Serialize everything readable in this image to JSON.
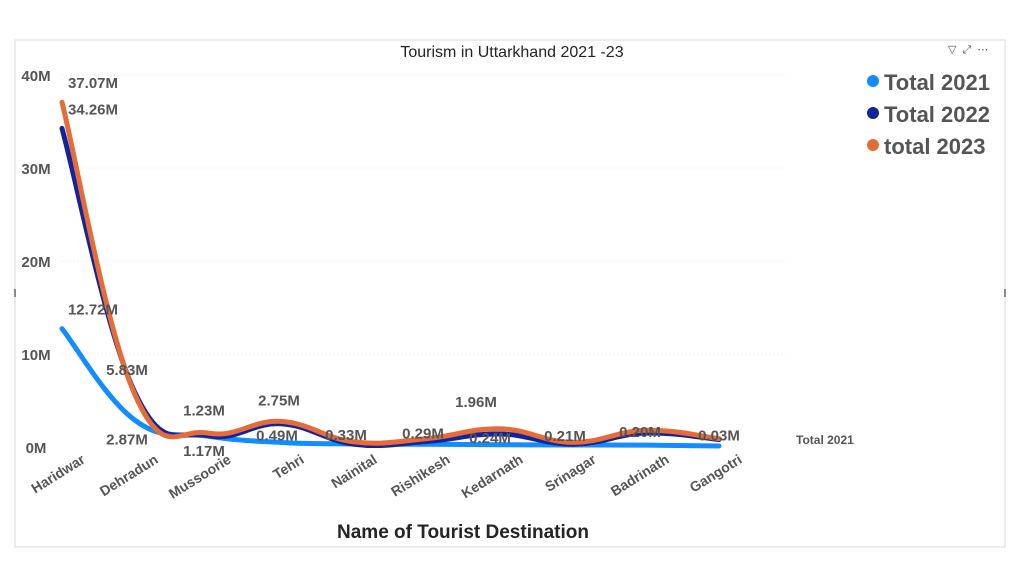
{
  "visual_header": {
    "filter_icon": "▽",
    "focus_icon": "⤢",
    "more_icon": "⋯"
  },
  "chart_data": {
    "type": "line",
    "title": "Tourism in Uttarkhand 2021 -23",
    "xlabel": "Name of Tourist Destination",
    "ylabel": "",
    "ylim": [
      0,
      40000000
    ],
    "yticks": [
      {
        "value": 0,
        "label": "0M"
      },
      {
        "value": 10000000,
        "label": "10M"
      },
      {
        "value": 20000000,
        "label": "20M"
      },
      {
        "value": 30000000,
        "label": "30M"
      },
      {
        "value": 40000000,
        "label": "40M"
      }
    ],
    "grid": true,
    "legend_position": "top-right",
    "categories": [
      "Haridwar",
      "Dehradun",
      "Mussoorie",
      "Tehri",
      "Nainital",
      "Rishikesh",
      "Kedarnath",
      "Srinagar",
      "Badrinath",
      "Gangotri"
    ],
    "series": [
      {
        "name": "Total 2021",
        "color": "#118DFF",
        "values": [
          12720000,
          2870000,
          1170000,
          490000,
          330000,
          290000,
          240000,
          210000,
          200000,
          30000
        ],
        "labels": [
          "12.72M",
          "2.87M",
          "1.17M",
          "0.49M",
          "0.33M",
          "0.29M",
          "0.24M",
          "0.21M",
          "0.20M",
          "0.03M"
        ],
        "end_label": "Total 2021"
      },
      {
        "name": "Total 2022",
        "color": "#12239E",
        "values": [
          34260000,
          5830000,
          1230000,
          2500000,
          300000,
          600000,
          1400000,
          300000,
          1500000,
          800000
        ],
        "labels": [
          "34.26M",
          "5.83M",
          "1.23M",
          "",
          "",
          "",
          "",
          "",
          "",
          ""
        ]
      },
      {
        "name": "total 2023",
        "color": "#E66C37",
        "values": [
          37070000,
          5600000,
          1500000,
          2750000,
          550000,
          900000,
          1960000,
          500000,
          1800000,
          900000
        ],
        "labels": [
          "37.07M",
          "",
          "",
          "2.75M",
          "",
          "",
          "1.96M",
          "",
          "",
          ""
        ]
      }
    ]
  }
}
